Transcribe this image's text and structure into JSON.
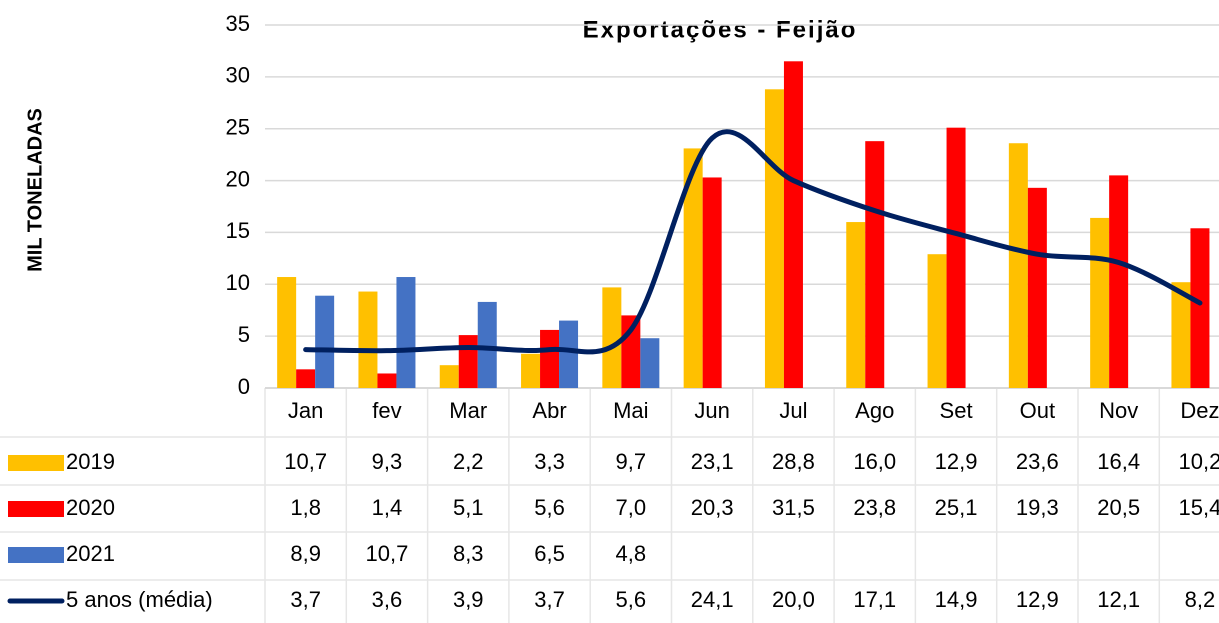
{
  "chart_data": {
    "type": "bar",
    "title": "Exportações - Feijão",
    "y_label": "MIL TONELADAS",
    "categories": [
      "Jan",
      "fev",
      "Mar",
      "Abr",
      "Mai",
      "Jun",
      "Jul",
      "Ago",
      "Set",
      "Out",
      "Nov",
      "Dez"
    ],
    "series": [
      {
        "name": "2019",
        "type": "bar",
        "color": "#FFC000",
        "values": [
          10.7,
          9.3,
          2.2,
          3.3,
          9.7,
          23.1,
          28.8,
          16.0,
          12.9,
          23.6,
          16.4,
          10.2
        ],
        "value_labels": [
          "10,7",
          "9,3",
          "2,2",
          "3,3",
          "9,7",
          "23,1",
          "28,8",
          "16,0",
          "12,9",
          "23,6",
          "16,4",
          "10,2"
        ]
      },
      {
        "name": "2020",
        "type": "bar",
        "color": "#FF0000",
        "values": [
          1.8,
          1.4,
          5.1,
          5.6,
          7.0,
          20.3,
          31.5,
          23.8,
          25.1,
          19.3,
          20.5,
          15.4
        ],
        "value_labels": [
          "1,8",
          "1,4",
          "5,1",
          "5,6",
          "7,0",
          "20,3",
          "31,5",
          "23,8",
          "25,1",
          "19,3",
          "20,5",
          "15,4"
        ]
      },
      {
        "name": "2021",
        "type": "bar",
        "color": "#4472C4",
        "values": [
          8.9,
          10.7,
          8.3,
          6.5,
          4.8,
          null,
          null,
          null,
          null,
          null,
          null,
          null
        ],
        "value_labels": [
          "8,9",
          "10,7",
          "8,3",
          "6,5",
          "4,8",
          null,
          null,
          null,
          null,
          null,
          null,
          null
        ]
      },
      {
        "name": "5 anos (média)",
        "type": "line",
        "color": "#002060",
        "values": [
          3.7,
          3.6,
          3.9,
          3.7,
          5.6,
          24.1,
          20.0,
          17.1,
          14.9,
          12.9,
          12.1,
          8.2
        ],
        "value_labels": [
          "3,7",
          "3,6",
          "3,9",
          "3,7",
          "5,6",
          "24,1",
          "20,0",
          "17,1",
          "14,9",
          "12,9",
          "12,1",
          "8,2"
        ]
      }
    ],
    "ylim": [
      0,
      35
    ],
    "yticks": [
      0,
      5,
      10,
      15,
      20,
      25,
      30,
      35
    ],
    "grid": true
  }
}
